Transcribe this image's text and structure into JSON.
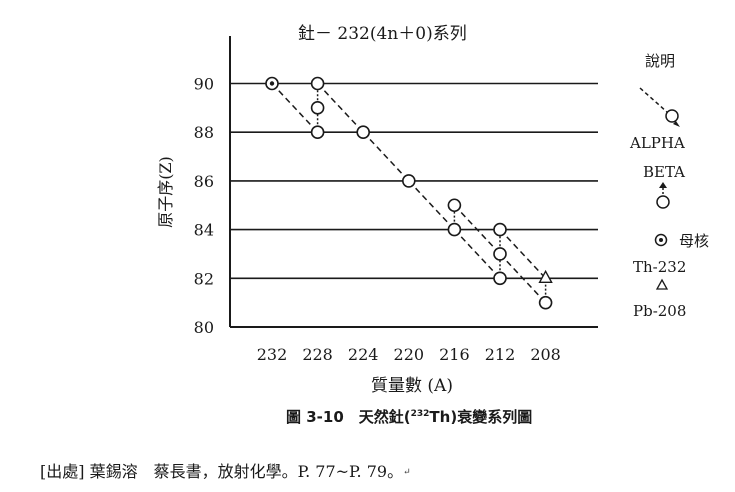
{
  "chart_data": {
    "type": "scatter",
    "title": "釷－ 232(4n＋0)系列",
    "xlabel": "質量數 (A)",
    "ylabel": "原子序(Z)",
    "x_ticks": [
      "232",
      "228",
      "224",
      "220",
      "216",
      "212",
      "208"
    ],
    "y_ticks": [
      "80",
      "82",
      "84",
      "86",
      "88",
      "90"
    ],
    "xlim": [
      236,
      204
    ],
    "ylim": [
      80,
      92
    ],
    "grid": "horizontal",
    "legend_position": "right",
    "points": [
      {
        "A": 232,
        "Z": 90,
        "kind": "parent"
      },
      {
        "A": 228,
        "Z": 90,
        "kind": "nuclide"
      },
      {
        "A": 228,
        "Z": 89,
        "kind": "nuclide"
      },
      {
        "A": 228,
        "Z": 88,
        "kind": "nuclide"
      },
      {
        "A": 224,
        "Z": 88,
        "kind": "nuclide"
      },
      {
        "A": 220,
        "Z": 86,
        "kind": "nuclide"
      },
      {
        "A": 216,
        "Z": 85,
        "kind": "nuclide"
      },
      {
        "A": 216,
        "Z": 84,
        "kind": "nuclide"
      },
      {
        "A": 212,
        "Z": 84,
        "kind": "nuclide"
      },
      {
        "A": 212,
        "Z": 83,
        "kind": "nuclide"
      },
      {
        "A": 212,
        "Z": 82,
        "kind": "nuclide"
      },
      {
        "A": 208,
        "Z": 82,
        "kind": "end"
      },
      {
        "A": 208,
        "Z": 81,
        "kind": "nuclide"
      }
    ],
    "alpha_decays": [
      [
        [
          232,
          90
        ],
        [
          228,
          88
        ]
      ],
      [
        [
          228,
          90
        ],
        [
          224,
          88
        ]
      ],
      [
        [
          224,
          88
        ],
        [
          220,
          86
        ]
      ],
      [
        [
          220,
          86
        ],
        [
          216,
          84
        ]
      ],
      [
        [
          216,
          85
        ],
        [
          212,
          83
        ]
      ],
      [
        [
          216,
          84
        ],
        [
          212,
          82
        ]
      ],
      [
        [
          212,
          84
        ],
        [
          208,
          82
        ]
      ],
      [
        [
          212,
          83
        ],
        [
          208,
          81
        ]
      ]
    ],
    "beta_decays": [
      [
        [
          228,
          88
        ],
        [
          228,
          90
        ]
      ],
      [
        [
          216,
          84
        ],
        [
          216,
          85
        ]
      ],
      [
        [
          212,
          82
        ],
        [
          212,
          84
        ]
      ],
      [
        [
          208,
          81
        ],
        [
          208,
          82
        ]
      ]
    ]
  },
  "legend": {
    "title": "說明",
    "alpha_label": "ALPHA",
    "beta_label": "BETA",
    "parent_label": "母核",
    "parent_nuclide": "Th-232",
    "end_nuclide": "Pb-208"
  },
  "caption": {
    "prefix": "圖 3-10　天然釷(",
    "sup": "232",
    "suffix": "Th)衰變系列圖"
  },
  "source": {
    "text": "[出處] 葉錫溶　蔡長書，放射化學。P. 77~P. 79。",
    "mark": "↵"
  }
}
